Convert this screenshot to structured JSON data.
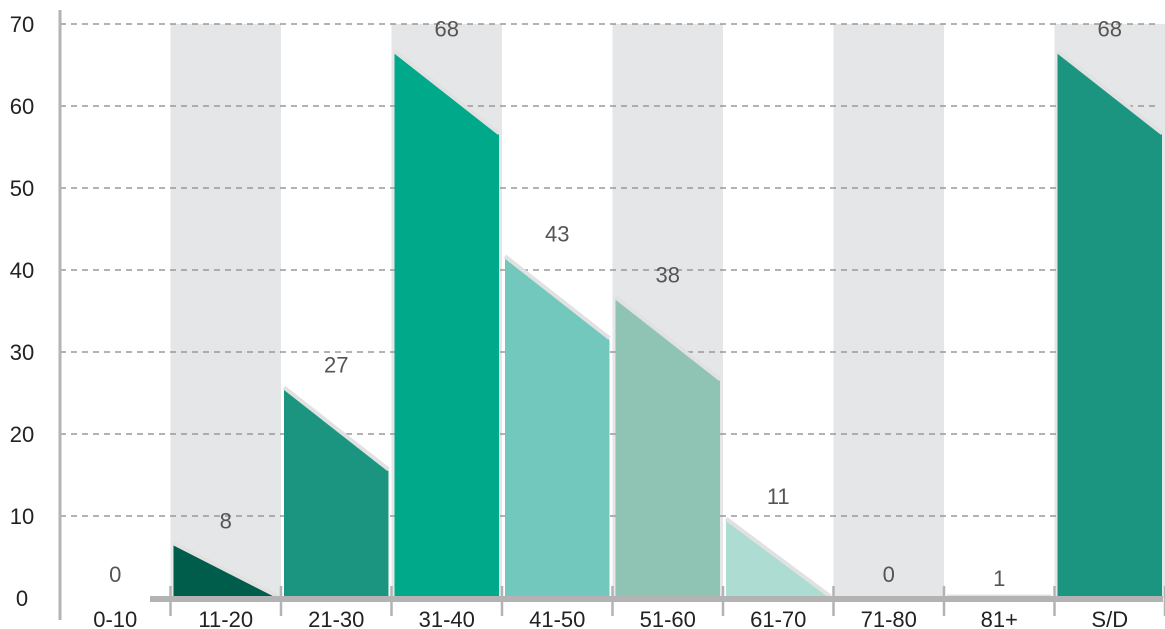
{
  "chart_data": {
    "type": "bar",
    "categories": [
      "0-10",
      "11-20",
      "21-30",
      "31-40",
      "41-50",
      "51-60",
      "61-70",
      "71-80",
      "81+",
      "S/D"
    ],
    "values": [
      0,
      8,
      27,
      68,
      43,
      38,
      11,
      0,
      1,
      68
    ],
    "data_labels": [
      "0",
      "8",
      "27",
      "68",
      "43",
      "38",
      "11",
      "0",
      "1",
      "68"
    ],
    "y_ticks": [
      "0",
      "10",
      "20",
      "30",
      "40",
      "50",
      "60",
      "70"
    ],
    "ylim": [
      0,
      70
    ],
    "grid": true,
    "legend": "none",
    "bar_colors": [
      "#005c4b",
      "#005c4b",
      "#1c9580",
      "#00a98a",
      "#72c8bc",
      "#8fc3b4",
      "#addcd3",
      "#005c4b",
      "#005c4b",
      "#1c9580"
    ],
    "band_color": "#e5e6e8",
    "axis_color": "#b3b3b3",
    "grid_color": "#999999"
  }
}
